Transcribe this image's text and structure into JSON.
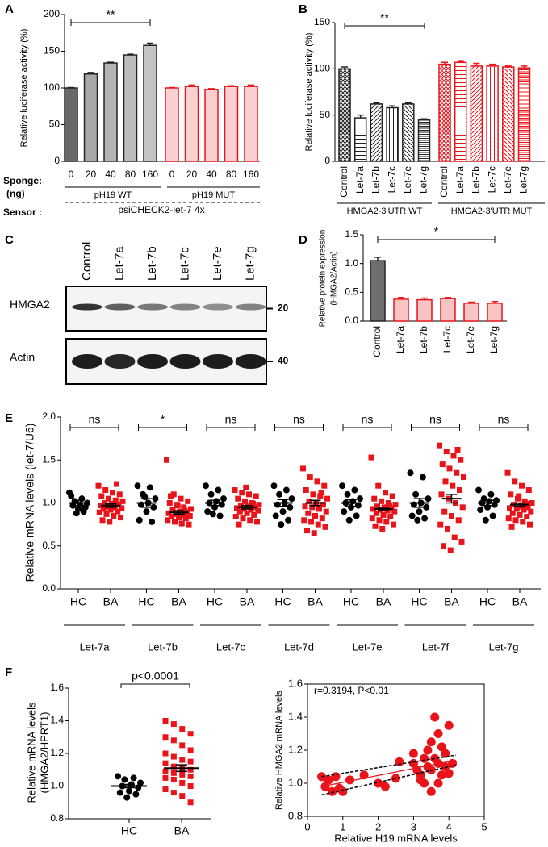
{
  "panel_labels": [
    "A",
    "B",
    "C",
    "D",
    "E",
    "F"
  ],
  "blot": {
    "lanes": [
      "Control",
      "Let-7a",
      "Let-7b",
      "Let-7c",
      "Let-7e",
      "Let-7g"
    ],
    "bands": [
      {
        "label": "HMGA2",
        "size": "20"
      },
      {
        "label": "Actin",
        "size": "40"
      }
    ]
  },
  "chart_data": [
    {
      "type": "bar",
      "ylabel": "Relative luciferase activity (%)",
      "significance": "**",
      "ylim": [
        0,
        200
      ],
      "yticks": [
        0,
        50,
        100,
        150,
        200
      ],
      "groups": [
        {
          "name": "pH19 WT",
          "categories": [
            "0",
            "20",
            "40",
            "80",
            "160"
          ],
          "values": [
            100,
            119,
            134,
            145,
            158
          ],
          "errors": [
            0.5,
            2,
            1,
            1,
            3
          ],
          "colors": [
            "#686868",
            "#a8a8a8",
            "#b4b4b4",
            "#bcbcbc",
            "#c4c4c4"
          ],
          "edge_color": "#222222"
        },
        {
          "name": "pH19 MUT",
          "categories": [
            "0",
            "20",
            "40",
            "80",
            "160"
          ],
          "values": [
            100,
            102,
            98,
            102,
            102
          ],
          "errors": [
            0.5,
            2,
            1,
            1,
            2
          ],
          "colors": [
            "#fbd0d0",
            "#fbd0d0",
            "#fbd0d0",
            "#fbd0d0",
            "#fbd0d0"
          ],
          "edge_color": "#e8141a"
        }
      ],
      "sponge_label": "Sponge:",
      "sponge_unit": "(ng)",
      "sensor_label": "Sensor :",
      "sensor": "psiCHECK2-let-7 4x"
    },
    {
      "type": "bar",
      "ylabel": "Relative luciferase activity (%)",
      "significance": "**",
      "ylim": [
        0,
        150
      ],
      "yticks": [
        0,
        50,
        100,
        150
      ],
      "groups": [
        {
          "name": "HMGA2-3'UTR WT",
          "categories": [
            "Control",
            "Let-7a",
            "Let-7b",
            "Let-7c",
            "Let-7e",
            "Let-7g"
          ],
          "values": [
            100,
            47,
            62,
            58,
            62,
            45
          ],
          "errors": [
            2,
            3,
            1,
            2,
            1,
            1
          ],
          "edge_color": "#222222",
          "hatched": true
        },
        {
          "name": "HMGA2-3'UTR MUT",
          "categories": [
            "Control",
            "Let-7a",
            "Let-7b",
            "Let-7c",
            "Let-7e",
            "Let-7g"
          ],
          "values": [
            105,
            107,
            103,
            103,
            102,
            101
          ],
          "errors": [
            2,
            1,
            3,
            2,
            1,
            2
          ],
          "edge_color": "#e8141a",
          "hatched": true
        }
      ]
    },
    {
      "type": "bar",
      "ylabel": [
        "Relative protein expression",
        "(HMGA2/Actin)"
      ],
      "significance": "*",
      "ylim": [
        0,
        1.5
      ],
      "yticks": [
        {
          "value": 0,
          "label": "0.0"
        },
        0.5,
        {
          "value": 1,
          "label": "1.0"
        },
        1.5
      ],
      "groups": [
        {
          "categories": [
            "Control"
          ],
          "values": [
            1.05
          ],
          "errors": [
            0.06
          ],
          "colors": [
            "#6e6e6e"
          ],
          "edge_color": "#222222"
        },
        {
          "categories": [
            "Let-7a",
            "Let-7b",
            "Let-7c",
            "Let-7e",
            "Let-7g"
          ],
          "values": [
            0.38,
            0.37,
            0.39,
            0.31,
            0.31
          ],
          "errors": [
            0.03,
            0.03,
            0.02,
            0.02,
            0.03
          ],
          "colors": [
            "#f9c4c4",
            "#f9c4c4",
            "#f9c4c4",
            "#f9c4c4",
            "#f9c4c4"
          ],
          "edge_color": "#e8141a"
        }
      ]
    },
    {
      "type": "dotplot",
      "ylabel": "Relative mRNA levels (let-7/U6)",
      "ylim": [
        0,
        2
      ],
      "yticks": [
        {
          "value": 0,
          "label": "0.0"
        },
        0.5,
        {
          "value": 1,
          "label": "1.0"
        },
        1.5,
        {
          "value": 2,
          "label": "2.0"
        }
      ],
      "groups": [
        {
          "name": "Let-7a",
          "significance": "ns",
          "samples": [
            {
              "label": "HC",
              "color": "#000000",
              "marker": "circle",
              "mean": 1.0,
              "sem": 0.03,
              "values": [
                1.12,
                1.05,
                1.02,
                1.0,
                0.98,
                0.97,
                0.95,
                0.93,
                1.08,
                0.9,
                0.88
              ]
            },
            {
              "label": "BA",
              "color": "#e8141a",
              "marker": "square",
              "mean": 0.97,
              "sem": 0.02,
              "values": [
                1.2,
                1.15,
                1.12,
                1.1,
                1.08,
                1.05,
                1.03,
                1.02,
                1.0,
                0.99,
                0.98,
                0.97,
                0.96,
                0.95,
                0.94,
                0.93,
                0.92,
                0.9,
                0.89,
                0.87,
                0.85,
                0.83,
                0.8,
                0.78,
                1.22
              ]
            }
          ]
        },
        {
          "name": "Let-7b",
          "significance": "*",
          "samples": [
            {
              "label": "HC",
              "color": "#000000",
              "marker": "circle",
              "mean": 1.0,
              "sem": 0.05,
              "values": [
                1.2,
                1.18,
                1.1,
                1.05,
                1.0,
                0.98,
                0.95,
                0.9,
                0.8,
                0.78,
                1.07
              ]
            },
            {
              "label": "BA",
              "color": "#e8141a",
              "marker": "square",
              "mean": 0.89,
              "sem": 0.02,
              "values": [
                1.5,
                1.1,
                1.05,
                1.02,
                1.0,
                0.98,
                0.95,
                0.93,
                0.92,
                0.9,
                0.89,
                0.88,
                0.87,
                0.86,
                0.85,
                0.84,
                0.83,
                0.82,
                0.8,
                0.78,
                0.76,
                0.75,
                1.08,
                0.97,
                0.91
              ]
            }
          ]
        },
        {
          "name": "Let-7c",
          "significance": "ns",
          "samples": [
            {
              "label": "HC",
              "color": "#000000",
              "marker": "circle",
              "mean": 1.0,
              "sem": 0.03,
              "values": [
                1.2,
                1.15,
                1.1,
                1.05,
                1.02,
                1.0,
                0.98,
                0.95,
                0.9,
                0.85,
                0.87
              ]
            },
            {
              "label": "BA",
              "color": "#e8141a",
              "marker": "square",
              "mean": 0.95,
              "sem": 0.02,
              "values": [
                1.15,
                1.12,
                1.1,
                1.08,
                1.05,
                1.02,
                1.0,
                0.98,
                0.97,
                0.96,
                0.95,
                0.94,
                0.93,
                0.92,
                0.91,
                0.9,
                0.88,
                0.86,
                0.84,
                0.82,
                0.8,
                0.78,
                0.75,
                1.18,
                0.99
              ]
            }
          ]
        },
        {
          "name": "Let-7d",
          "significance": "ns",
          "samples": [
            {
              "label": "HC",
              "color": "#000000",
              "marker": "circle",
              "mean": 1.0,
              "sem": 0.04,
              "values": [
                1.2,
                1.15,
                1.1,
                1.05,
                1.0,
                0.98,
                0.95,
                0.9,
                0.85,
                0.8,
                0.75
              ]
            },
            {
              "label": "BA",
              "color": "#e8141a",
              "marker": "square",
              "mean": 1.0,
              "sem": 0.03,
              "values": [
                1.4,
                1.3,
                1.25,
                1.2,
                1.15,
                1.1,
                1.08,
                1.05,
                1.02,
                1.0,
                0.98,
                0.96,
                0.95,
                0.93,
                0.9,
                0.88,
                0.85,
                0.82,
                0.8,
                0.78,
                0.75,
                0.72,
                0.68,
                0.65,
                1.12
              ]
            }
          ]
        },
        {
          "name": "Let-7e",
          "significance": "ns",
          "samples": [
            {
              "label": "HC",
              "color": "#000000",
              "marker": "circle",
              "mean": 1.0,
              "sem": 0.04,
              "values": [
                1.2,
                1.15,
                1.1,
                1.05,
                1.02,
                1.0,
                0.97,
                0.95,
                0.9,
                0.85,
                0.8
              ]
            },
            {
              "label": "BA",
              "color": "#e8141a",
              "marker": "square",
              "mean": 0.93,
              "sem": 0.02,
              "values": [
                1.53,
                1.2,
                1.12,
                1.08,
                1.05,
                1.02,
                1.0,
                0.98,
                0.96,
                0.95,
                0.94,
                0.93,
                0.92,
                0.91,
                0.9,
                0.88,
                0.86,
                0.84,
                0.82,
                0.8,
                0.78,
                0.75,
                0.73,
                0.7,
                0.97
              ]
            }
          ]
        },
        {
          "name": "Let-7f",
          "significance": "ns",
          "samples": [
            {
              "label": "HC",
              "color": "#000000",
              "marker": "circle",
              "mean": 1.0,
              "sem": 0.05,
              "values": [
                1.35,
                1.3,
                1.1,
                1.05,
                1.0,
                0.98,
                0.95,
                0.9,
                0.85,
                0.82,
                0.8
              ]
            },
            {
              "label": "BA",
              "color": "#e8141a",
              "marker": "square",
              "mean": 1.05,
              "sem": 0.05,
              "values": [
                1.67,
                1.6,
                1.55,
                1.5,
                1.45,
                1.4,
                1.35,
                1.3,
                1.25,
                1.2,
                1.15,
                1.1,
                1.05,
                1.0,
                0.95,
                0.9,
                0.85,
                0.8,
                0.75,
                0.7,
                0.6,
                0.55,
                0.5,
                0.45,
                1.62
              ]
            }
          ]
        },
        {
          "name": "Let-7g",
          "significance": "ns",
          "samples": [
            {
              "label": "HC",
              "color": "#000000",
              "marker": "circle",
              "mean": 1.0,
              "sem": 0.03,
              "values": [
                1.15,
                1.1,
                1.05,
                1.03,
                1.02,
                1.0,
                0.98,
                0.95,
                0.92,
                0.85,
                0.8
              ]
            },
            {
              "label": "BA",
              "color": "#e8141a",
              "marker": "square",
              "mean": 0.98,
              "sem": 0.02,
              "values": [
                1.35,
                1.25,
                1.2,
                1.15,
                1.1,
                1.05,
                1.02,
                1.0,
                0.98,
                0.96,
                0.95,
                0.94,
                0.93,
                0.92,
                0.9,
                0.88,
                0.86,
                0.84,
                0.82,
                0.8,
                0.78,
                0.75,
                0.72,
                1.08,
                0.99
              ]
            }
          ]
        }
      ]
    },
    {
      "type": "dotplot",
      "ylabel": [
        "Relative mRNA levels",
        "(HMGA2/HPRT1)"
      ],
      "ylim": [
        0.8,
        1.6
      ],
      "yticks": [
        0.8,
        {
          "value": 1,
          "label": "1.0"
        },
        1.2,
        1.4,
        1.6
      ],
      "groups": [
        {
          "significance": "p<0.0001",
          "samples": [
            {
              "label": "HC",
              "color": "#000000",
              "marker": "circle",
              "mean": 1.0,
              "sem": 0.01,
              "values": [
                1.06,
                1.05,
                1.04,
                1.02,
                1.01,
                1.0,
                0.99,
                0.97,
                0.96,
                0.95,
                0.93
              ]
            },
            {
              "label": "BA",
              "color": "#e8141a",
              "marker": "square",
              "mean": 1.11,
              "sem": 0.02,
              "values": [
                1.4,
                1.38,
                1.35,
                1.32,
                1.3,
                1.28,
                1.25,
                1.22,
                1.2,
                1.18,
                1.16,
                1.15,
                1.14,
                1.12,
                1.11,
                1.1,
                1.09,
                1.08,
                1.07,
                1.06,
                1.05,
                1.04,
                1.02,
                1.0,
                0.98,
                0.96,
                0.94,
                0.9
              ]
            }
          ]
        }
      ]
    },
    {
      "type": "scatter",
      "annotation": "r=0.3194, P<0.01",
      "xlabel": "Relative H19 mRNA levels",
      "ylabel": "Relative HMGA2 mRNA levels",
      "xlim": [
        0,
        5
      ],
      "xticks": [
        0,
        1,
        2,
        3,
        4,
        5
      ],
      "ylim": [
        0.8,
        1.6
      ],
      "yticks": [
        0.8,
        {
          "value": 1,
          "label": "1.0"
        },
        1.2,
        1.4,
        1.6
      ],
      "color": "#e8141a",
      "x": [
        0.4,
        0.5,
        0.6,
        0.7,
        0.8,
        0.9,
        1.0,
        1.2,
        1.6,
        2.0,
        2.2,
        2.5,
        3.0,
        3.1,
        3.2,
        3.3,
        3.3,
        3.4,
        3.4,
        3.5,
        3.5,
        3.6,
        3.6,
        3.7,
        3.7,
        3.8,
        3.8,
        3.9,
        3.9,
        4.0,
        4.0,
        4.1,
        3.2,
        3.0,
        3.5,
        3.7,
        2.6
      ],
      "y": [
        1.04,
        0.98,
        1.02,
        0.95,
        1.04,
        0.97,
        0.95,
        1.02,
        1.05,
        1.0,
        0.98,
        1.03,
        1.12,
        1.08,
        1.05,
        1.15,
        1.0,
        1.2,
        1.1,
        1.25,
        1.08,
        1.4,
        1.15,
        1.3,
        1.12,
        1.22,
        1.05,
        1.18,
        1.1,
        1.35,
        1.06,
        1.12,
        1.02,
        1.18,
        0.95,
        1.0,
        1.13
      ],
      "fit": {
        "color": "#e8141a",
        "x": [
          0.4,
          4.2
        ],
        "y": [
          0.98,
          1.14
        ]
      },
      "confidence_band": {
        "color": "#000000",
        "x": [
          0.4,
          4.2
        ],
        "upper": [
          1.04,
          1.17
        ],
        "lower": [
          0.93,
          1.11
        ]
      }
    }
  ]
}
